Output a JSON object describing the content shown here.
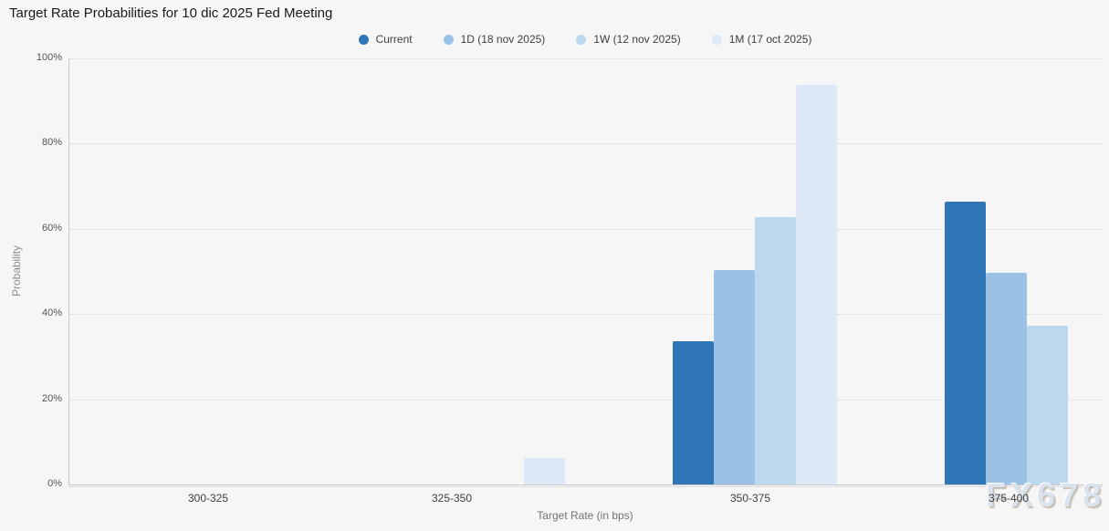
{
  "title": "Target Rate Probabilities for 10 dic 2025 Fed Meeting",
  "watermark": "FX678",
  "legend": [
    {
      "label": "Current",
      "color": "#2f76b6"
    },
    {
      "label": "1D (18 nov 2025)",
      "color": "#9bc2e6"
    },
    {
      "label": "1W (12 nov 2025)",
      "color": "#bcd8ee"
    },
    {
      "label": "1M (17 oct 2025)",
      "color": "#dde9f6"
    }
  ],
  "chart_data": {
    "type": "bar",
    "title": "Target Rate Probabilities for 10 dic 2025 Fed Meeting",
    "categories": [
      "300-325",
      "325-350",
      "350-375",
      "375-400"
    ],
    "series": [
      {
        "name": "Current",
        "color": "#2f76b6",
        "values": [
          0,
          0,
          33.6,
          66.4
        ]
      },
      {
        "name": "1D (18 nov 2025)",
        "color": "#9bc2e6",
        "values": [
          0,
          0,
          50.3,
          49.7
        ]
      },
      {
        "name": "1W (12 nov 2025)",
        "color": "#bcd8ee",
        "values": [
          0,
          0,
          62.8,
          37.2
        ]
      },
      {
        "name": "1M (17 oct 2025)",
        "color": "#dde9f6",
        "values": [
          0,
          6.3,
          93.7,
          0
        ]
      }
    ],
    "xlabel": "Target Rate (in bps)",
    "ylabel": "Probability",
    "ylim": [
      0,
      100
    ],
    "yticks": [
      "0%",
      "20%",
      "40%",
      "60%",
      "80%",
      "100%"
    ],
    "ytick_values": [
      0,
      20,
      40,
      60,
      80,
      100
    ],
    "grid": "dotted-horizontal",
    "legend_position": "top"
  }
}
